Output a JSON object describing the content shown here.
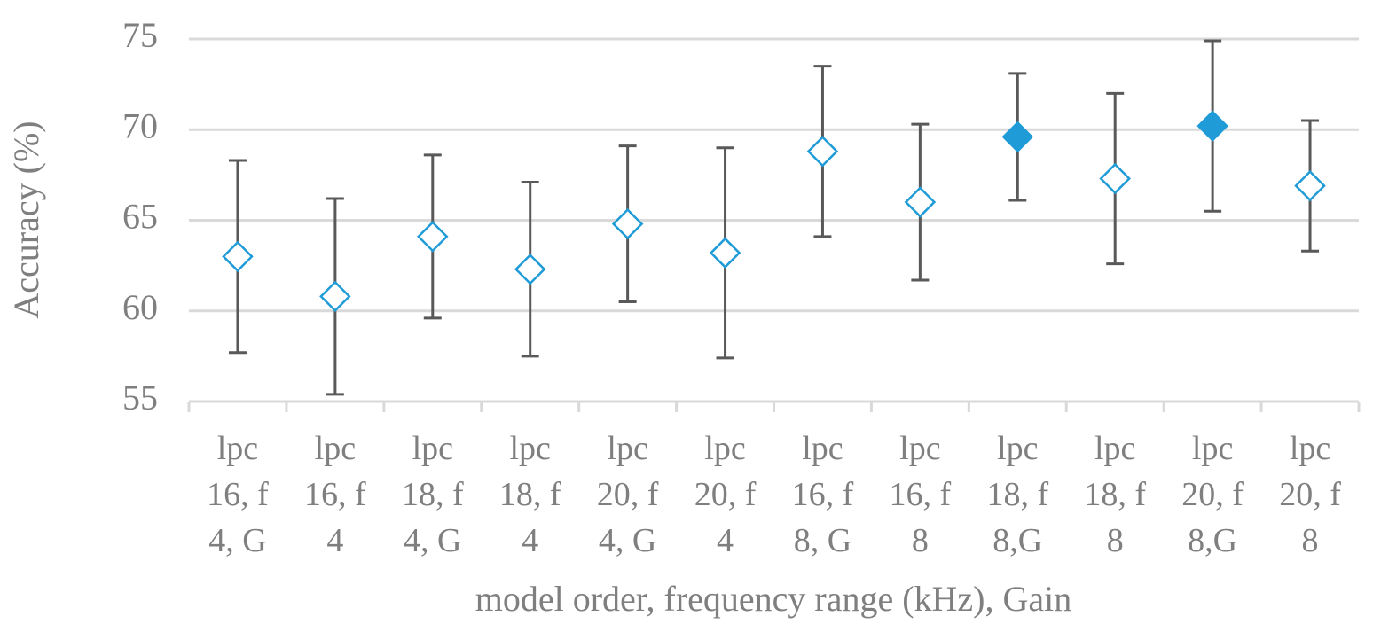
{
  "chart_data": {
    "type": "errorbar",
    "x_label": "model order, frequency range (kHz), Gain",
    "y_label": "Accuracy (%)",
    "categories": [
      "lpc 16, f 4, G",
      "lpc 16, f 4",
      "lpc 18, f 4, G",
      "lpc 18, f 4",
      "lpc 20, f 4, G",
      "lpc 20, f 4",
      "lpc 16, f 8, G",
      "lpc 16, f 8",
      "lpc 18, f 8,G",
      "lpc 18, f 8",
      "lpc 20, f 8,G",
      "lpc 20, f 8"
    ],
    "values": [
      63.0,
      60.8,
      64.1,
      62.3,
      64.8,
      63.2,
      68.8,
      66.0,
      69.6,
      67.3,
      70.2,
      66.9
    ],
    "errors": [
      5.3,
      5.4,
      4.5,
      4.8,
      4.3,
      5.8,
      4.7,
      4.3,
      3.5,
      4.7,
      4.7,
      3.6
    ],
    "marker_filled": [
      false,
      false,
      false,
      false,
      false,
      false,
      false,
      false,
      true,
      false,
      true,
      false
    ],
    "color": "#1f9bd7",
    "error_color": "#595959",
    "ylim": [
      55,
      75
    ],
    "yticks": [
      55,
      60,
      65,
      70,
      75
    ],
    "grid": true
  }
}
